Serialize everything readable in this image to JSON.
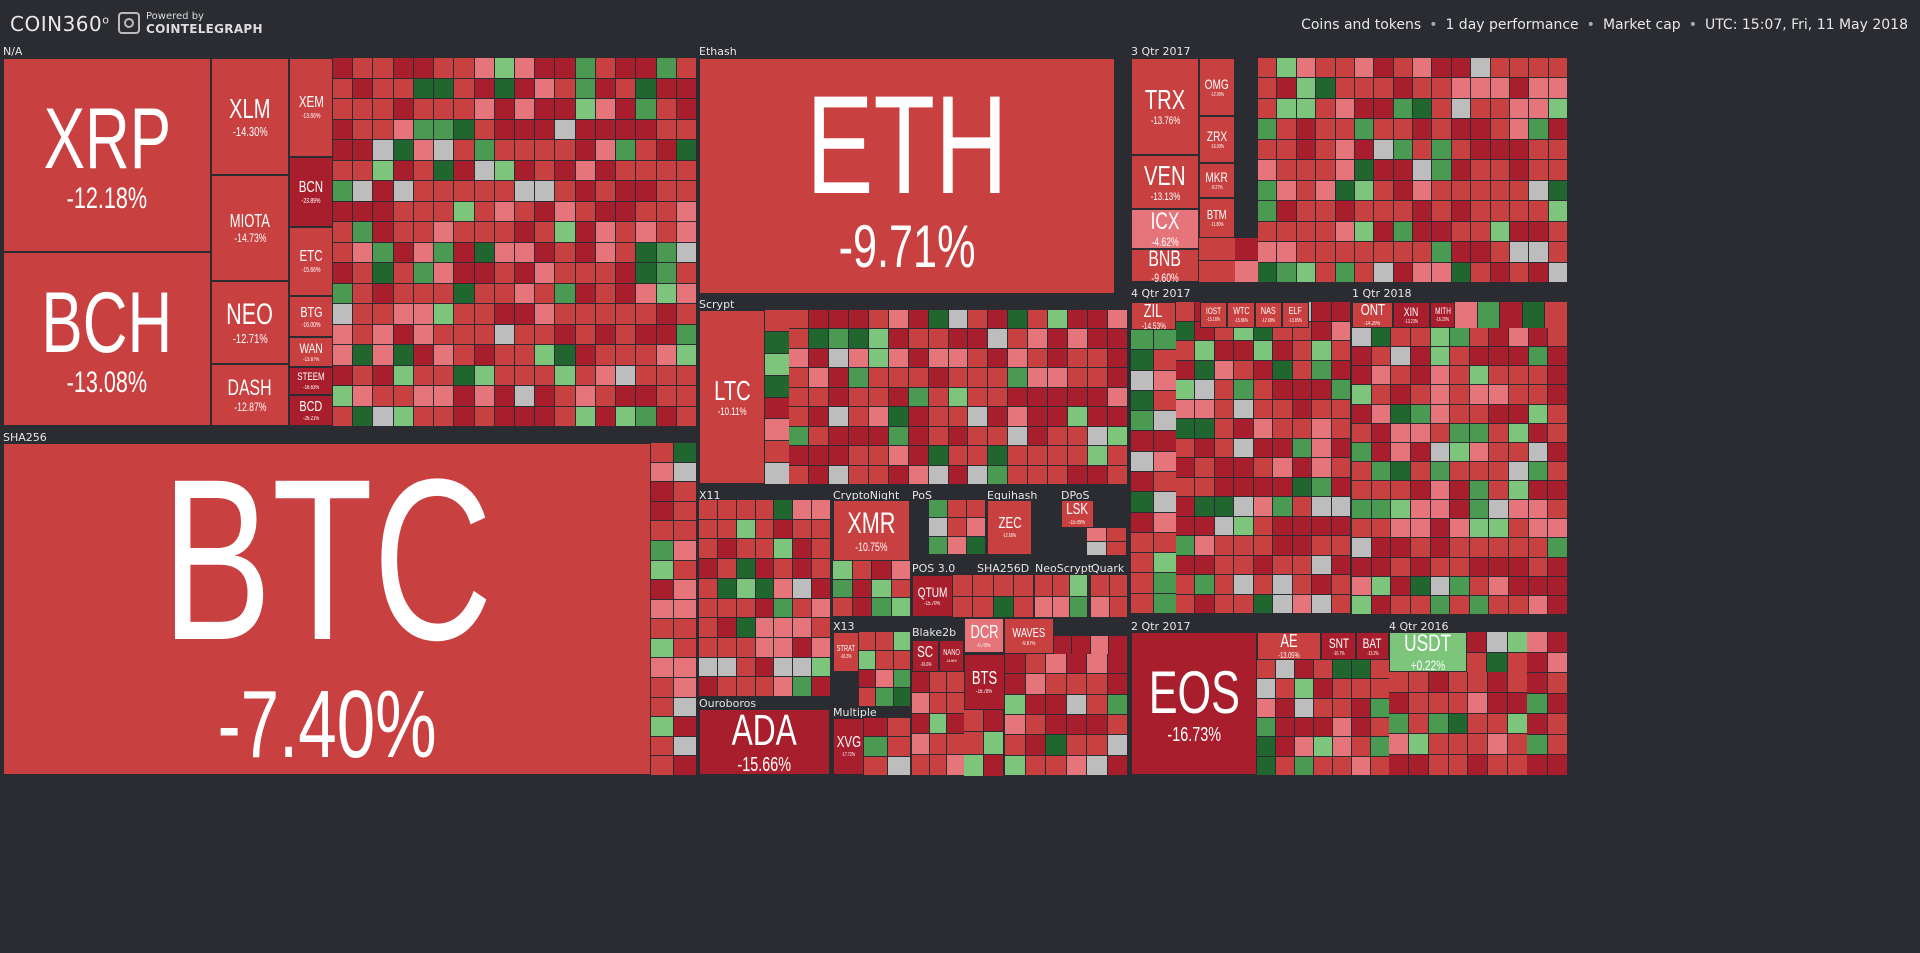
{
  "header": {
    "brand": "COIN360",
    "brand_mark": "o",
    "powered_by": "Powered by",
    "powered_brand": "COINTELEGRAPH",
    "filters": [
      "Coins and tokens",
      "1 day performance",
      "Market cap"
    ],
    "timestamp": "UTC: 15:07, Fri, 11 May 2018",
    "separator": "•"
  },
  "colors": {
    "background": "#2b2c31",
    "red": "#c94040",
    "dark_red": "#a81e2c",
    "pink": "#e5757a",
    "light_green": "#7cc57a",
    "green": "#4b9a52",
    "dark_green": "#21662e",
    "gray": "#bdbdbd"
  },
  "sections": [
    {
      "key": "na",
      "label": "N/A"
    },
    {
      "key": "ethash",
      "label": "Ethash"
    },
    {
      "key": "q3_2017",
      "label": "3 Qtr 2017"
    },
    {
      "key": "scrypt",
      "label": "Scrypt"
    },
    {
      "key": "q4_2017",
      "label": "4 Qtr 2017"
    },
    {
      "key": "q1_2018",
      "label": "1 Qtr 2018"
    },
    {
      "key": "sha256",
      "label": "SHA256"
    },
    {
      "key": "x11",
      "label": "X11"
    },
    {
      "key": "cryptonight",
      "label": "CryptoNight"
    },
    {
      "key": "pos",
      "label": "PoS"
    },
    {
      "key": "equihash",
      "label": "Equihash"
    },
    {
      "key": "dpos",
      "label": "DPoS"
    },
    {
      "key": "pos30",
      "label": "POS 3.0"
    },
    {
      "key": "sha256d",
      "label": "SHA256D"
    },
    {
      "key": "neoscrypt",
      "label": "NeoScrypt"
    },
    {
      "key": "quark",
      "label": "Quark"
    },
    {
      "key": "x13",
      "label": "X13"
    },
    {
      "key": "blake2b",
      "label": "Blake2b"
    },
    {
      "key": "multiple",
      "label": "Multiple"
    },
    {
      "key": "ouroboros",
      "label": "Ouroboros"
    },
    {
      "key": "q2_2017",
      "label": "2 Qtr 2017"
    },
    {
      "key": "q4_2016",
      "label": "4 Qtr 2016"
    }
  ],
  "coins": [
    {
      "symbol": "XRP",
      "change": "-12.18%",
      "color": "red"
    },
    {
      "symbol": "BCH",
      "change": "-13.08%",
      "color": "red"
    },
    {
      "symbol": "XLM",
      "change": "-14.30%",
      "color": "red"
    },
    {
      "symbol": "MIOTA",
      "change": "-14.73%",
      "color": "red"
    },
    {
      "symbol": "NEO",
      "change": "-12.71%",
      "color": "red"
    },
    {
      "symbol": "DASH",
      "change": "-12.87%",
      "color": "red"
    },
    {
      "symbol": "XEM",
      "change": "-13.66%",
      "color": "red"
    },
    {
      "symbol": "BCN",
      "change": "-23.89%",
      "color": "dark_red"
    },
    {
      "symbol": "ETC",
      "change": "-15.66%",
      "color": "red"
    },
    {
      "symbol": "BTG",
      "change": "-16.00%",
      "color": "red"
    },
    {
      "symbol": "WAN",
      "change": "-13.87%",
      "color": "red"
    },
    {
      "symbol": "STEEM",
      "change": "-16.63%",
      "color": "dark_red"
    },
    {
      "symbol": "BCD",
      "change": "-26.21%",
      "color": "dark_red"
    },
    {
      "symbol": "ETH",
      "change": "-9.71%",
      "color": "red"
    },
    {
      "symbol": "TRX",
      "change": "-13.76%",
      "color": "red"
    },
    {
      "symbol": "VEN",
      "change": "-13.13%",
      "color": "red"
    },
    {
      "symbol": "ICX",
      "change": "-4.62%",
      "color": "pink"
    },
    {
      "symbol": "BNB",
      "change": "-9.60%",
      "color": "red"
    },
    {
      "symbol": "OMG",
      "change": "-12.09%",
      "color": "red"
    },
    {
      "symbol": "ZRX",
      "change": "-16.09%",
      "color": "red"
    },
    {
      "symbol": "MKR",
      "change": "-8.27%",
      "color": "red"
    },
    {
      "symbol": "BTM",
      "change": "-11.80%",
      "color": "red"
    },
    {
      "symbol": "LTC",
      "change": "-10.11%",
      "color": "red"
    },
    {
      "symbol": "ZIL",
      "change": "-14.53%",
      "color": "red"
    },
    {
      "symbol": "IOST",
      "change": "-15.16%",
      "color": "red"
    },
    {
      "symbol": "WTC",
      "change": "-15.86%",
      "color": "red"
    },
    {
      "symbol": "NAS",
      "change": "-12.68%",
      "color": "red"
    },
    {
      "symbol": "ELF",
      "change": "-13.85%",
      "color": "red"
    },
    {
      "symbol": "ONT",
      "change": "-14.20%",
      "color": "red"
    },
    {
      "symbol": "XIN",
      "change": "-13.23%",
      "color": "dark_red"
    },
    {
      "symbol": "MITH",
      "change": "-16.20%",
      "color": "dark_red"
    },
    {
      "symbol": "BTC",
      "change": "-7.40%",
      "color": "red"
    },
    {
      "symbol": "XMR",
      "change": "-10.75%",
      "color": "red"
    },
    {
      "symbol": "ZEC",
      "change": "-12.68%",
      "color": "red"
    },
    {
      "symbol": "LSK",
      "change": "-15.09%",
      "color": "red"
    },
    {
      "symbol": "QTUM",
      "change": "-15.70%",
      "color": "dark_red"
    },
    {
      "symbol": "STRAT",
      "change": "-16.3%",
      "color": "red"
    },
    {
      "symbol": "SC",
      "change": "-16.6%",
      "color": "dark_red"
    },
    {
      "symbol": "NANO",
      "change": "-16.66%",
      "color": "dark_red"
    },
    {
      "symbol": "DCR",
      "change": "-0.79%",
      "color": "pink"
    },
    {
      "symbol": "WAVES",
      "change": "-9.97%",
      "color": "red"
    },
    {
      "symbol": "BTS",
      "change": "-16.78%",
      "color": "dark_red"
    },
    {
      "symbol": "XVG",
      "change": "-17.72%",
      "color": "dark_red"
    },
    {
      "symbol": "ADA",
      "change": "-15.66%",
      "color": "dark_red"
    },
    {
      "symbol": "EOS",
      "change": "-16.73%",
      "color": "dark_red"
    },
    {
      "symbol": "AE",
      "change": "-13.05%",
      "color": "red"
    },
    {
      "symbol": "SNT",
      "change": "-16.7%",
      "color": "dark_red"
    },
    {
      "symbol": "BAT",
      "change": "-13.2%",
      "color": "dark_red"
    },
    {
      "symbol": "USDT",
      "change": "+0.22%",
      "color": "light_green"
    }
  ]
}
